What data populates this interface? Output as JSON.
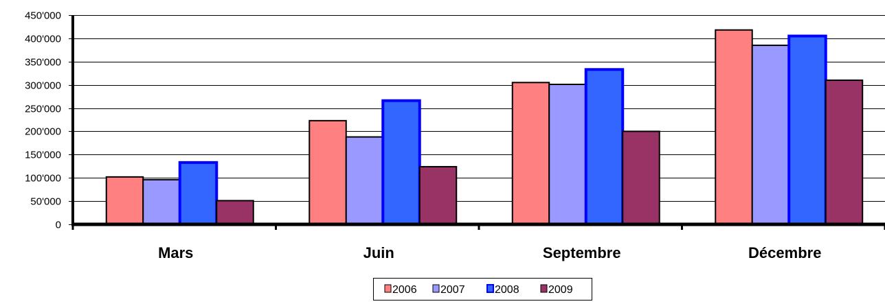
{
  "chart_data": {
    "type": "bar",
    "categories": [
      "Mars",
      "Juin",
      "Septembre",
      "Décembre"
    ],
    "series": [
      {
        "name": "2006",
        "values": [
          102000,
          223000,
          305000,
          418000
        ],
        "fill": "#FF8080",
        "stroke": "#000000"
      },
      {
        "name": "2007",
        "values": [
          96000,
          188000,
          301000,
          385000
        ],
        "fill": "#9999FF",
        "stroke": "#000000"
      },
      {
        "name": "2008",
        "values": [
          133000,
          266000,
          333000,
          405000
        ],
        "fill": "#3366FF",
        "stroke": "#0000FF"
      },
      {
        "name": "2009",
        "values": [
          51000,
          124000,
          200000,
          310000
        ],
        "fill": "#993366",
        "stroke": "#000000"
      }
    ],
    "ylim": [
      0,
      450000
    ],
    "yticks": [
      0,
      50000,
      100000,
      150000,
      200000,
      250000,
      300000,
      350000,
      400000,
      450000
    ],
    "ytick_labels": [
      "0",
      "50'000",
      "100'000",
      "150'000",
      "200'000",
      "250'000",
      "300'000",
      "350'000",
      "400'000",
      "450'000"
    ],
    "grid": true,
    "legend_position": "bottom"
  }
}
